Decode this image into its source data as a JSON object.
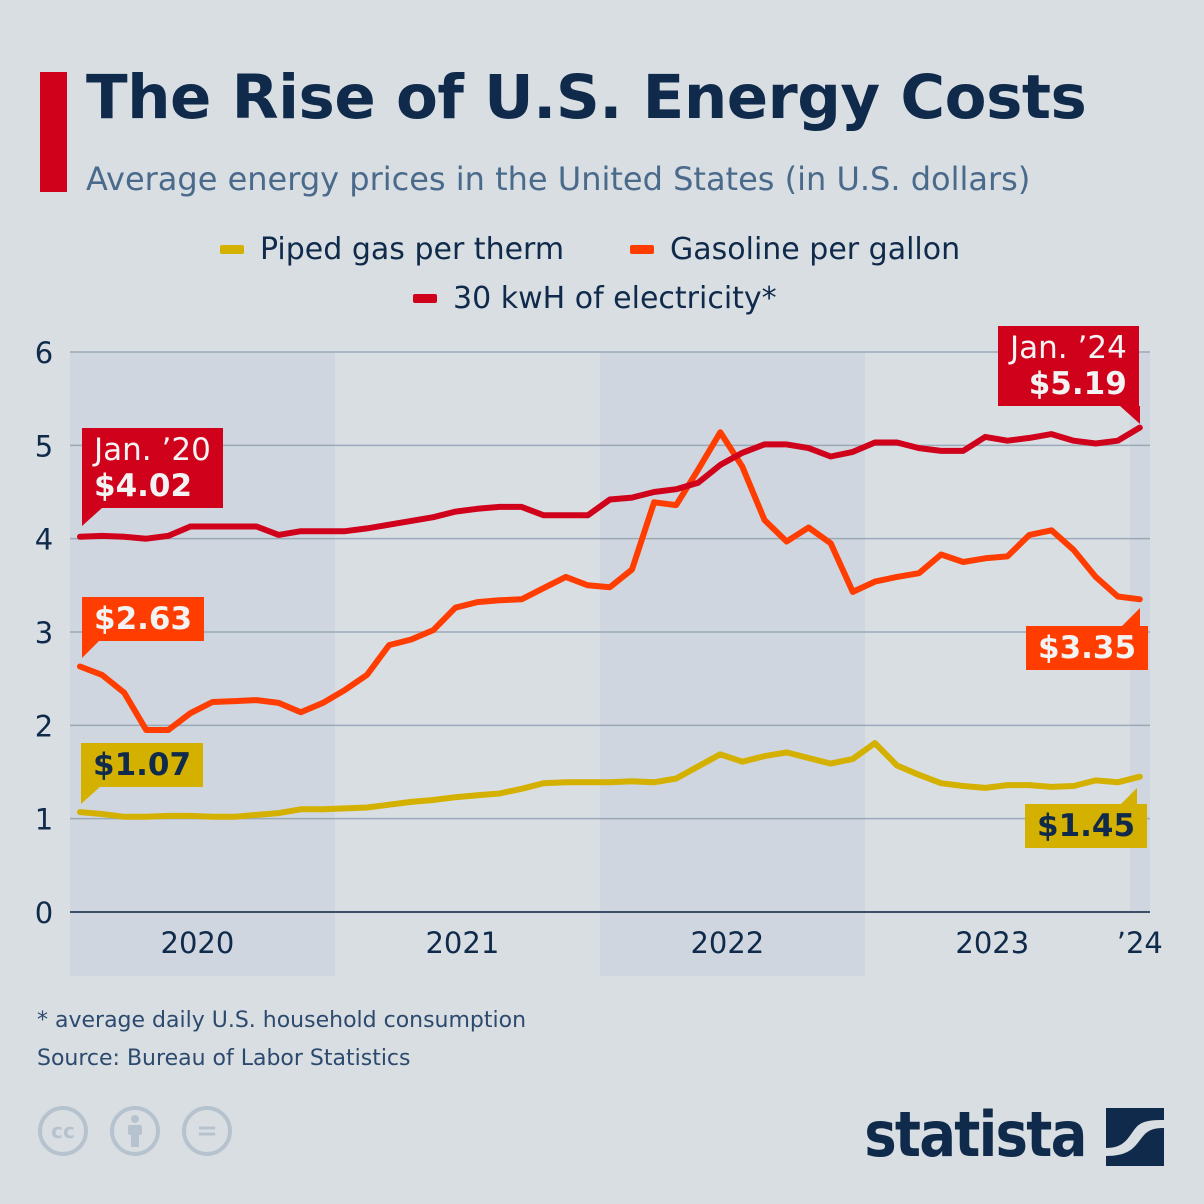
{
  "title": "The Rise of U.S. Energy Costs",
  "subtitle": "Average energy prices in the United States (in U.S. dollars)",
  "colors": {
    "electricity": "#d0021b",
    "gasoline": "#ff3d00",
    "piped_gas": "#d4b100",
    "title": "#0f2a4a",
    "background": "#d9dee3"
  },
  "chart_data": {
    "type": "line",
    "x_range": [
      "Jan 2020",
      "Jan 2024"
    ],
    "x_frequency": "monthly",
    "x_tick_labels": [
      "2020",
      "2021",
      "2022",
      "2023",
      "’24"
    ],
    "y_ticks": [
      "0",
      "1",
      "2",
      "3",
      "4",
      "5",
      "6"
    ],
    "ylim": [
      0,
      6
    ],
    "grid": true,
    "legend_position": "top",
    "series": [
      {
        "name": "Piped gas per therm",
        "color": "#d4b100",
        "values": [
          1.07,
          1.05,
          1.02,
          1.02,
          1.03,
          1.03,
          1.02,
          1.02,
          1.04,
          1.06,
          1.1,
          1.1,
          1.11,
          1.12,
          1.15,
          1.18,
          1.2,
          1.23,
          1.25,
          1.27,
          1.32,
          1.38,
          1.39,
          1.39,
          1.39,
          1.4,
          1.39,
          1.43,
          1.56,
          1.69,
          1.61,
          1.67,
          1.71,
          1.65,
          1.59,
          1.64,
          1.81,
          1.57,
          1.47,
          1.38,
          1.35,
          1.33,
          1.36,
          1.36,
          1.34,
          1.35,
          1.41,
          1.39,
          1.45
        ]
      },
      {
        "name": "Gasoline per gallon",
        "color": "#ff3d00",
        "values": [
          2.63,
          2.54,
          2.35,
          1.95,
          1.95,
          2.13,
          2.25,
          2.26,
          2.27,
          2.24,
          2.14,
          2.24,
          2.38,
          2.54,
          2.86,
          2.92,
          3.02,
          3.26,
          3.32,
          3.34,
          3.35,
          3.47,
          3.59,
          3.5,
          3.48,
          3.67,
          4.39,
          4.36,
          4.74,
          5.14,
          4.77,
          4.2,
          3.97,
          4.12,
          3.95,
          3.43,
          3.54,
          3.59,
          3.63,
          3.83,
          3.75,
          3.79,
          3.81,
          4.04,
          4.09,
          3.88,
          3.59,
          3.38,
          3.35
        ]
      },
      {
        "name": "30 kwH of electricity*",
        "color": "#d0021b",
        "values": [
          4.02,
          4.03,
          4.02,
          4.0,
          4.03,
          4.13,
          4.13,
          4.13,
          4.13,
          4.04,
          4.08,
          4.08,
          4.08,
          4.11,
          4.15,
          4.19,
          4.23,
          4.29,
          4.32,
          4.34,
          4.34,
          4.25,
          4.25,
          4.25,
          4.42,
          4.44,
          4.5,
          4.53,
          4.6,
          4.79,
          4.92,
          5.01,
          5.01,
          4.97,
          4.88,
          4.93,
          5.03,
          5.03,
          4.97,
          4.94,
          4.94,
          5.09,
          5.05,
          5.08,
          5.12,
          5.05,
          5.02,
          5.05,
          5.19
        ]
      }
    ],
    "annotations": {
      "electricity_start": {
        "date": "Jan. ’20",
        "value": "$4.02"
      },
      "electricity_end": {
        "date": "Jan. ’24",
        "value": "$5.19"
      },
      "gasoline_start": {
        "value": "$2.63"
      },
      "gasoline_end": {
        "value": "$3.35"
      },
      "piped_gas_start": {
        "value": "$1.07"
      },
      "piped_gas_end": {
        "value": "$1.45"
      }
    }
  },
  "footnote": "* average daily U.S. household consumption",
  "source": "Source: Bureau of Labor Statistics",
  "license_icons": [
    "cc-icon",
    "attribution-icon",
    "no-derivatives-icon"
  ],
  "license_icon_text": {
    "cc": "cc",
    "nd": "="
  },
  "logo": "statista"
}
